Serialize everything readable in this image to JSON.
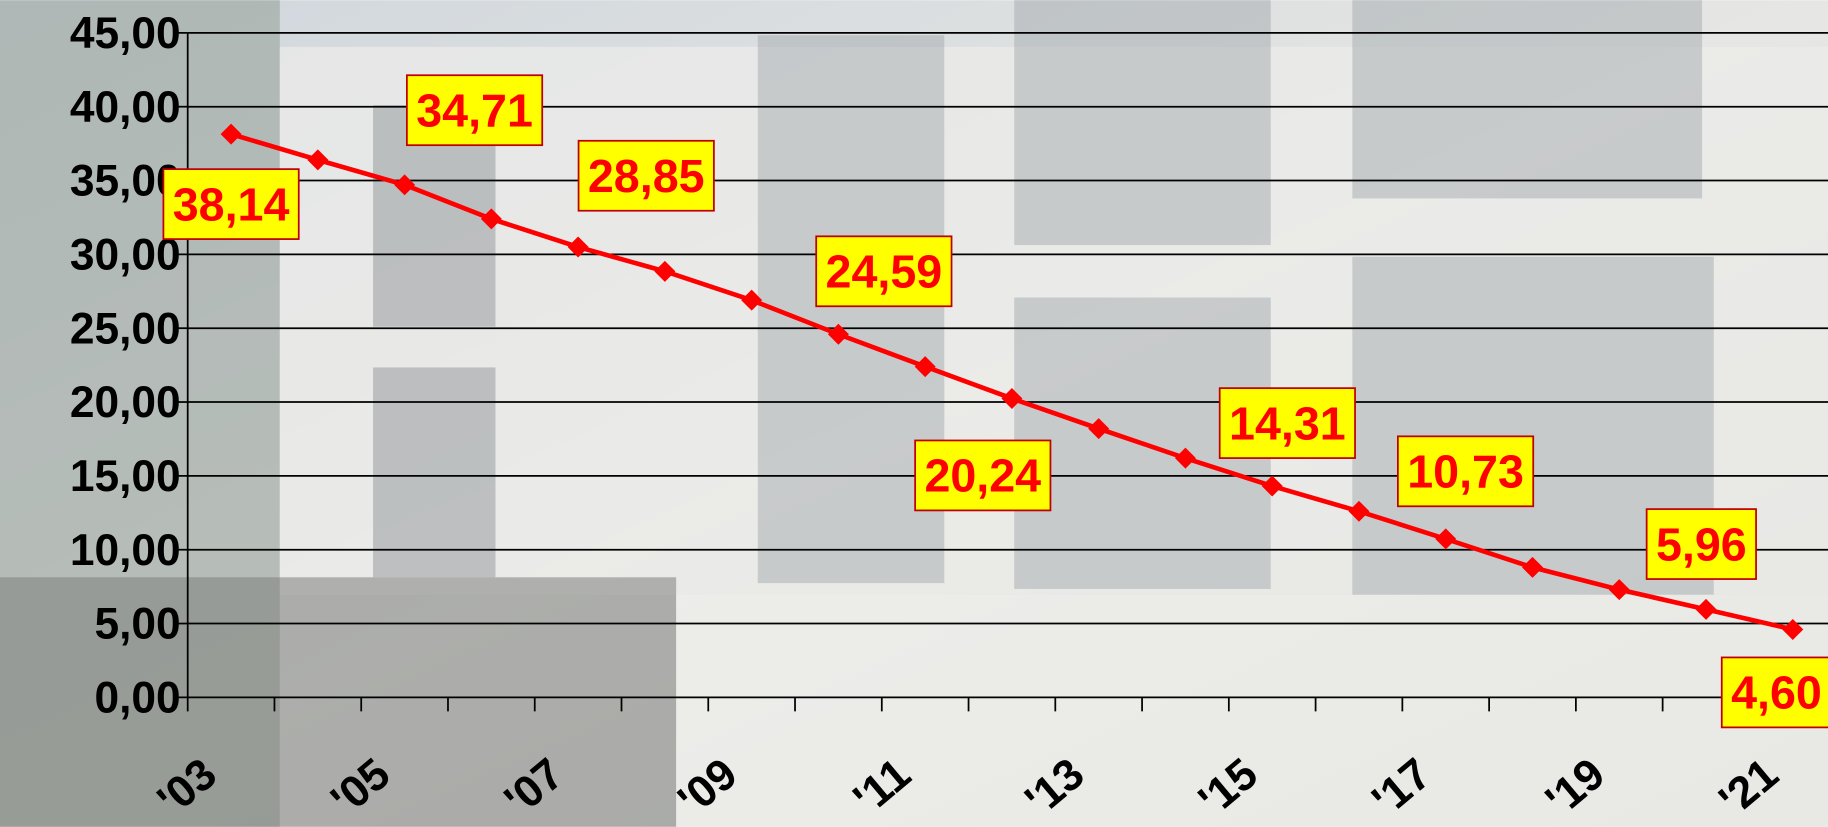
{
  "chart_data": {
    "type": "line",
    "categories": [
      "'03",
      null,
      "'05",
      null,
      "'07",
      null,
      "'09",
      null,
      "'11",
      null,
      "'13",
      null,
      "'15",
      null,
      "'17",
      null,
      "'19",
      null,
      "'21"
    ],
    "series": [
      {
        "color": "#ff0000",
        "values": [
          38.14,
          36.4,
          34.71,
          32.4,
          30.5,
          28.85,
          26.9,
          24.59,
          22.4,
          20.24,
          18.2,
          16.2,
          14.31,
          12.6,
          10.73,
          8.8,
          7.3,
          5.96,
          4.6
        ],
        "value_labels": [
          "38,14",
          null,
          "34,71",
          null,
          null,
          "28,85",
          null,
          "24,59",
          null,
          "20,24",
          null,
          null,
          "14,31",
          null,
          "10,73",
          null,
          null,
          "5,96",
          "4,60"
        ]
      }
    ],
    "ylim": [
      0,
      45
    ],
    "yticks": [
      {
        "value": 0,
        "label": "0,00"
      },
      {
        "value": 5,
        "label": "5,00"
      },
      {
        "value": 10,
        "label": "10,00"
      },
      {
        "value": 15,
        "label": "15,00"
      },
      {
        "value": 20,
        "label": "20,00"
      },
      {
        "value": 25,
        "label": "25,00"
      },
      {
        "value": 30,
        "label": "30,00"
      },
      {
        "value": 35,
        "label": "35,00"
      },
      {
        "value": 40,
        "label": "40,00"
      },
      {
        "value": 45,
        "label": "45,00"
      }
    ],
    "grid": true
  }
}
